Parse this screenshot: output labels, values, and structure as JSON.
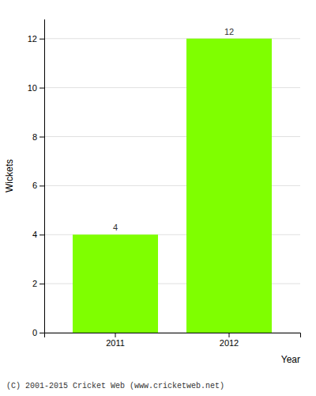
{
  "chart_data": {
    "type": "bar",
    "categories": [
      "2011",
      "2012"
    ],
    "values": [
      4,
      12
    ],
    "color": "#7fff00",
    "xlabel": "Year",
    "ylabel": "Wickets",
    "ylim": [
      0,
      12.8
    ],
    "yticks": [
      0,
      2,
      4,
      6,
      8,
      10,
      12
    ],
    "grid": true,
    "data_labels": true,
    "annotations": [
      "(C) 2001-2015 Cricket Web (www.cricketweb.net)"
    ]
  }
}
